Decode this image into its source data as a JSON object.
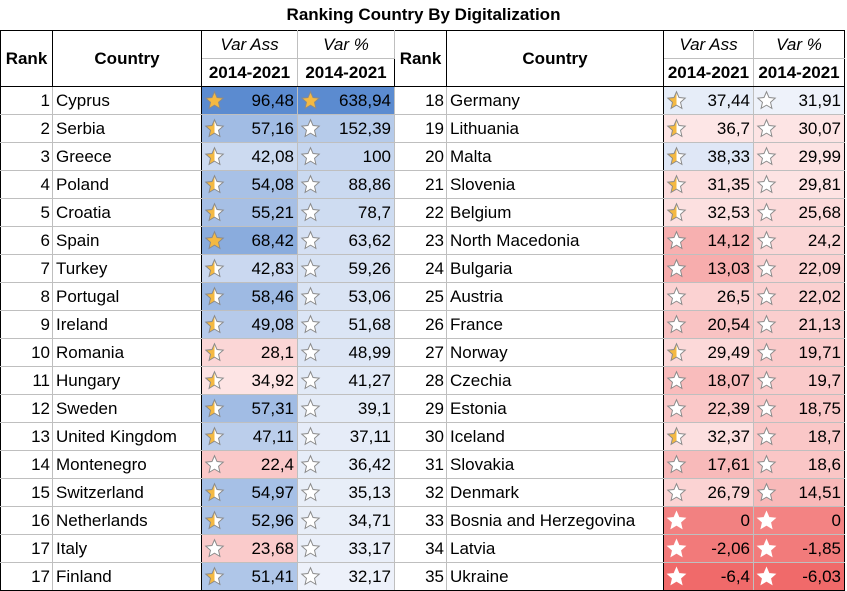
{
  "title": "Ranking Country By Digitalization",
  "headers": {
    "rank": "Rank",
    "country": "Country",
    "var_ass": "Var Ass",
    "var_pct": "Var %",
    "period": "2014-2021"
  },
  "colors": {
    "blue_max": "#5b8bd0",
    "blue_min": "#eef2fa",
    "pink_min": "#fde6e6",
    "red_max": "#f06a6a",
    "star_gold": "#f4b942",
    "star_empty": "#ffffff",
    "star_outline": "#8a8a8a"
  },
  "left_rows": [
    {
      "rank": "1",
      "country": "Cyprus",
      "ass": "96,48",
      "pct": "638,94"
    },
    {
      "rank": "2",
      "country": "Serbia",
      "ass": "57,16",
      "pct": "152,39"
    },
    {
      "rank": "3",
      "country": "Greece",
      "ass": "42,08",
      "pct": "100"
    },
    {
      "rank": "4",
      "country": "Poland",
      "ass": "54,08",
      "pct": "88,86"
    },
    {
      "rank": "5",
      "country": "Croatia",
      "ass": "55,21",
      "pct": "78,7"
    },
    {
      "rank": "6",
      "country": "Spain",
      "ass": "68,42",
      "pct": "63,62"
    },
    {
      "rank": "7",
      "country": "Turkey",
      "ass": "42,83",
      "pct": "59,26"
    },
    {
      "rank": "8",
      "country": "Portugal",
      "ass": "58,46",
      "pct": "53,06"
    },
    {
      "rank": "9",
      "country": "Ireland",
      "ass": "49,08",
      "pct": "51,68"
    },
    {
      "rank": "10",
      "country": "Romania",
      "ass": "28,1",
      "pct": "48,99"
    },
    {
      "rank": "11",
      "country": "Hungary",
      "ass": "34,92",
      "pct": "41,27"
    },
    {
      "rank": "12",
      "country": "Sweden",
      "ass": "57,31",
      "pct": "39,1"
    },
    {
      "rank": "13",
      "country": "United Kingdom",
      "ass": "47,11",
      "pct": "37,11"
    },
    {
      "rank": "14",
      "country": "Montenegro",
      "ass": "22,4",
      "pct": "36,42"
    },
    {
      "rank": "15",
      "country": "Switzerland",
      "ass": "54,97",
      "pct": "35,13"
    },
    {
      "rank": "16",
      "country": "Netherlands",
      "ass": "52,96",
      "pct": "34,71"
    },
    {
      "rank": "17",
      "country": "Italy",
      "ass": "23,68",
      "pct": "33,17"
    },
    {
      "rank": "17",
      "country": "Finland",
      "ass": "51,41",
      "pct": "32,17"
    }
  ],
  "right_rows": [
    {
      "rank": "18",
      "country": "Germany",
      "ass": "37,44",
      "pct": "31,91"
    },
    {
      "rank": "19",
      "country": "Lithuania",
      "ass": "36,7",
      "pct": "30,07"
    },
    {
      "rank": "20",
      "country": "Malta",
      "ass": "38,33",
      "pct": "29,99"
    },
    {
      "rank": "21",
      "country": "Slovenia",
      "ass": "31,35",
      "pct": "29,81"
    },
    {
      "rank": "22",
      "country": "Belgium",
      "ass": "32,53",
      "pct": "25,68"
    },
    {
      "rank": "23",
      "country": "North Macedonia",
      "ass": "14,12",
      "pct": "24,2"
    },
    {
      "rank": "24",
      "country": "Bulgaria",
      "ass": "13,03",
      "pct": "22,09"
    },
    {
      "rank": "25",
      "country": "Austria",
      "ass": "26,5",
      "pct": "22,02"
    },
    {
      "rank": "26",
      "country": "France",
      "ass": "20,54",
      "pct": "21,13"
    },
    {
      "rank": "27",
      "country": "Norway",
      "ass": "29,49",
      "pct": "19,71"
    },
    {
      "rank": "28",
      "country": "Czechia",
      "ass": "18,07",
      "pct": "19,7"
    },
    {
      "rank": "29",
      "country": "Estonia",
      "ass": "22,39",
      "pct": "18,75"
    },
    {
      "rank": "30",
      "country": "Iceland",
      "ass": "32,37",
      "pct": "18,7"
    },
    {
      "rank": "31",
      "country": "Slovakia",
      "ass": "17,61",
      "pct": "18,6"
    },
    {
      "rank": "32",
      "country": "Denmark",
      "ass": "26,79",
      "pct": "14,51"
    },
    {
      "rank": "33",
      "country": "Bosnia and Herzegovina",
      "ass": "0",
      "pct": "0"
    },
    {
      "rank": "34",
      "country": "Latvia",
      "ass": "-2,06",
      "pct": "-1,85"
    },
    {
      "rank": "35",
      "country": "Ukraine",
      "ass": "-6,4",
      "pct": "-6,03"
    }
  ]
}
